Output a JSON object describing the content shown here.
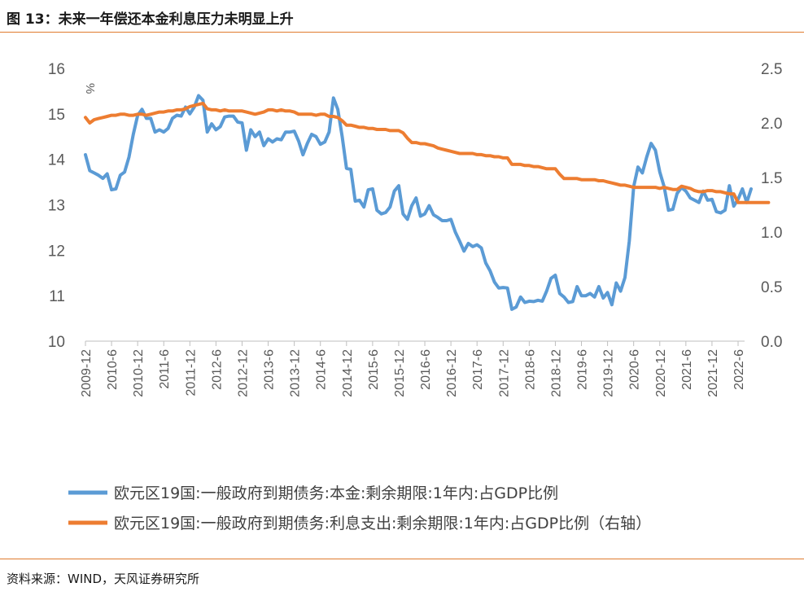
{
  "header": {
    "title": "图 13：未来一年偿还本金利息压力未明显上升"
  },
  "footer": {
    "source": "资料来源：WIND，天风证券研究所"
  },
  "colors": {
    "principal": "#5b9bd5",
    "interest": "#ed7d31",
    "rule": "#e07b2e"
  },
  "chart_data": {
    "type": "line",
    "title": "未来一年偿还本金利息压力未明显上升",
    "ylabel": "%",
    "ylim": [
      10,
      16
    ],
    "y2lim": [
      0,
      2.5
    ],
    "yticks": [
      "10",
      "11",
      "12",
      "13",
      "14",
      "15",
      "16"
    ],
    "y2ticks": [
      "0.0",
      "0.5",
      "1.0",
      "1.5",
      "2.0",
      "2.5"
    ],
    "xlabels": [
      "2009-12",
      "2010-6",
      "2010-12",
      "2011-6",
      "2011-12",
      "2012-6",
      "2012-12",
      "2013-6",
      "2013-12",
      "2014-6",
      "2014-12",
      "2015-6",
      "2015-12",
      "2016-6",
      "2016-12",
      "2017-6",
      "2017-12",
      "2018-6",
      "2018-12",
      "2019-6",
      "2019-12",
      "2020-6",
      "2020-12",
      "2021-6",
      "2021-12",
      "2022-6"
    ],
    "x_start": "2009-12",
    "legend_position": "bottom",
    "series": [
      {
        "name": "欧元区19国:一般政府到期债务:本金:剩余期限:1年内:占GDP比例",
        "axis": "left",
        "values": [
          14.1,
          13.75,
          13.7,
          13.65,
          13.58,
          13.68,
          13.33,
          13.35,
          13.65,
          13.72,
          14.05,
          14.55,
          14.97,
          15.1,
          14.9,
          14.9,
          14.6,
          14.65,
          14.6,
          14.68,
          14.9,
          14.97,
          14.95,
          15.15,
          15.0,
          15.15,
          15.4,
          15.3,
          14.6,
          14.78,
          14.65,
          14.72,
          14.93,
          14.95,
          14.95,
          14.82,
          14.8,
          14.2,
          14.65,
          14.5,
          14.6,
          14.3,
          14.45,
          14.38,
          14.45,
          14.43,
          14.6,
          14.6,
          14.62,
          14.4,
          14.1,
          14.35,
          14.55,
          14.5,
          14.33,
          14.38,
          14.6,
          15.35,
          15.1,
          14.5,
          13.8,
          13.78,
          13.08,
          13.1,
          12.95,
          13.33,
          13.35,
          12.88,
          12.8,
          12.83,
          12.95,
          13.3,
          13.42,
          12.8,
          12.68,
          12.98,
          13.15,
          12.75,
          12.8,
          12.98,
          12.78,
          12.72,
          12.65,
          12.65,
          12.68,
          12.4,
          12.2,
          11.98,
          12.15,
          12.08,
          12.12,
          12.05,
          11.72,
          11.55,
          11.3,
          11.17,
          11.18,
          11.17,
          10.7,
          10.75,
          10.97,
          10.85,
          10.88,
          10.87,
          10.9,
          10.88,
          11.1,
          11.38,
          11.45,
          11.05,
          10.97,
          10.85,
          10.87,
          11.2,
          11.0,
          11.0,
          11.05,
          10.97,
          11.2,
          10.95,
          11.07,
          10.8,
          11.28,
          11.1,
          11.4,
          12.2,
          13.4,
          13.83,
          13.7,
          14.05,
          14.35,
          14.2,
          13.72,
          13.4,
          12.88,
          12.9,
          13.25,
          13.38,
          13.3,
          13.15,
          13.1,
          13.05,
          13.3,
          13.1,
          13.12,
          12.85,
          12.82,
          12.88,
          13.42,
          12.97,
          13.12,
          13.35,
          13.05,
          13.35
        ]
      },
      {
        "name": "欧元区19国:一般政府到期债务:利息支出:剩余期限:1年内:占GDP比例（右轴）",
        "axis": "right",
        "values": [
          2.05,
          2.0,
          2.03,
          2.04,
          2.05,
          2.06,
          2.07,
          2.07,
          2.08,
          2.08,
          2.07,
          2.07,
          2.08,
          2.08,
          2.07,
          2.08,
          2.09,
          2.1,
          2.1,
          2.11,
          2.11,
          2.12,
          2.12,
          2.13,
          2.15,
          2.16,
          2.17,
          2.18,
          2.13,
          2.12,
          2.12,
          2.11,
          2.12,
          2.11,
          2.11,
          2.11,
          2.11,
          2.1,
          2.09,
          2.08,
          2.09,
          2.1,
          2.12,
          2.12,
          2.11,
          2.12,
          2.11,
          2.11,
          2.1,
          2.08,
          2.08,
          2.08,
          2.08,
          2.07,
          2.08,
          2.08,
          2.06,
          2.06,
          2.05,
          2.02,
          1.98,
          1.98,
          1.97,
          1.96,
          1.96,
          1.95,
          1.95,
          1.94,
          1.94,
          1.94,
          1.93,
          1.93,
          1.93,
          1.91,
          1.86,
          1.82,
          1.82,
          1.81,
          1.81,
          1.8,
          1.79,
          1.77,
          1.76,
          1.75,
          1.74,
          1.73,
          1.72,
          1.72,
          1.72,
          1.72,
          1.71,
          1.71,
          1.7,
          1.7,
          1.69,
          1.69,
          1.68,
          1.68,
          1.62,
          1.62,
          1.62,
          1.61,
          1.61,
          1.6,
          1.6,
          1.59,
          1.58,
          1.58,
          1.58,
          1.53,
          1.49,
          1.49,
          1.49,
          1.49,
          1.48,
          1.48,
          1.48,
          1.48,
          1.47,
          1.47,
          1.46,
          1.45,
          1.44,
          1.43,
          1.43,
          1.42,
          1.41,
          1.41,
          1.41,
          1.41,
          1.41,
          1.41,
          1.4,
          1.41,
          1.4,
          1.39,
          1.39,
          1.42,
          1.41,
          1.4,
          1.38,
          1.37,
          1.37,
          1.38,
          1.38,
          1.37,
          1.37,
          1.36,
          1.35,
          1.35,
          1.27,
          1.27,
          1.27,
          1.27,
          1.27,
          1.27,
          1.27,
          1.27
        ]
      }
    ]
  }
}
